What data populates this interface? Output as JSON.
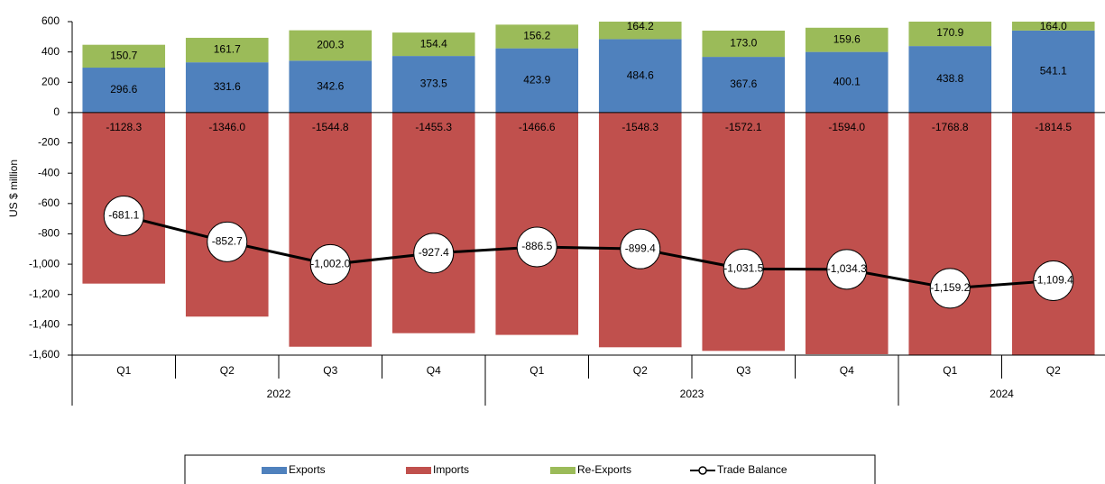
{
  "chart_data": {
    "type": "stacked-bar-line",
    "y_axis_label": "US $ million",
    "groups": [
      {
        "name": "2022",
        "categories": [
          "Q1",
          "Q2",
          "Q3",
          "Q4"
        ]
      },
      {
        "name": "2023",
        "categories": [
          "Q1",
          "Q2",
          "Q3",
          "Q4"
        ]
      },
      {
        "name": "2024",
        "categories": [
          "Q1",
          "Q2"
        ]
      }
    ],
    "ylim": [
      -1600,
      600
    ],
    "yticks": [
      600,
      400,
      200,
      0,
      -200,
      -400,
      -600,
      -800,
      {
        "value": -1000,
        "label": "-1,000"
      },
      {
        "value": -1200,
        "label": "-1,200"
      },
      {
        "value": -1400,
        "label": "-1,400"
      },
      {
        "value": -1600,
        "label": "-1,600"
      }
    ],
    "legend": "bottom",
    "series": [
      {
        "name": "Exports",
        "color": "#4f81bd",
        "kind": "bar",
        "stack": "up",
        "values": [
          296.6,
          331.6,
          342.6,
          373.5,
          423.9,
          484.6,
          367.6,
          400.1,
          438.8,
          541.1
        ],
        "value_labels": [
          "296.6",
          "331.6",
          "342.6",
          "373.5",
          "423.9",
          "484.6",
          "367.6",
          "400.1",
          "438.8",
          "541.1"
        ]
      },
      {
        "name": "Imports",
        "color": "#c0504d",
        "kind": "bar",
        "stack": "down",
        "values": [
          -1128.3,
          -1346.0,
          -1544.8,
          -1455.3,
          -1466.6,
          -1548.3,
          -1572.1,
          -1594.0,
          -1768.8,
          -1814.5
        ],
        "value_labels": [
          "-1128.3",
          "-1346.0",
          "-1544.8",
          "-1455.3",
          "-1466.6",
          "-1548.3",
          "-1572.1",
          "-1594.0",
          "-1768.8",
          "-1814.5"
        ]
      },
      {
        "name": "Re-Exports",
        "color": "#9bbb59",
        "kind": "bar",
        "stack": "up",
        "values": [
          150.7,
          161.7,
          200.3,
          154.4,
          156.2,
          164.2,
          173.0,
          159.6,
          170.9,
          164.0
        ],
        "value_labels": [
          "150.7",
          "161.7",
          "200.3",
          "154.4",
          "156.2",
          "164.2",
          "173.0",
          "159.6",
          "170.9",
          "164.0"
        ]
      },
      {
        "name": "Trade Balance",
        "color": "#000000",
        "kind": "line",
        "values": [
          -681.1,
          -852.7,
          -1002.0,
          -927.4,
          -886.5,
          -899.4,
          -1031.5,
          -1034.3,
          -1159.2,
          -1109.4
        ],
        "value_labels": [
          "-681.1",
          "-852.7",
          "-1,002.0",
          "-927.4",
          "-886.5",
          "-899.4",
          "-1,031.5",
          "-1,034.3",
          "-1,159.2",
          "-1,109.4"
        ]
      }
    ]
  }
}
